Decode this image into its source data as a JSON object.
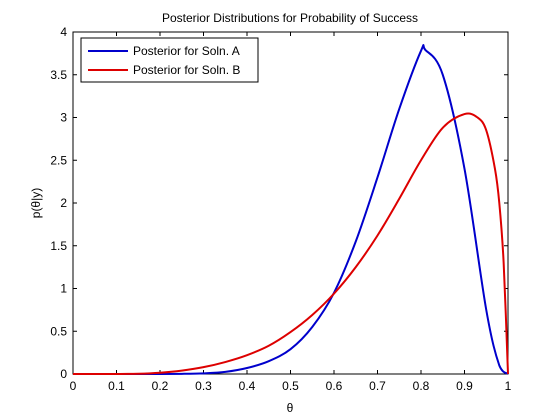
{
  "chart_data": {
    "type": "line",
    "title": "Posterior Distributions for Probability of Success",
    "xlabel": "θ",
    "ylabel": "p(θ|y)",
    "xlim": [
      0,
      1
    ],
    "ylim": [
      0,
      4
    ],
    "xticks": [
      0,
      0.1,
      0.2,
      0.3,
      0.4,
      0.5,
      0.6,
      0.7,
      0.8,
      0.9,
      1
    ],
    "yticks": [
      0,
      0.5,
      1,
      1.5,
      2,
      2.5,
      3,
      3.5,
      4
    ],
    "xtick_labels": [
      "0",
      "0.1",
      "0.2",
      "0.3",
      "0.4",
      "0.5",
      "0.6",
      "0.7",
      "0.8",
      "0.9",
      "1"
    ],
    "ytick_labels": [
      "0",
      "0.5",
      "1",
      "1.5",
      "2",
      "2.5",
      "3",
      "3.5",
      "4"
    ],
    "grid": false,
    "legend_position": "top-left",
    "series": [
      {
        "name": "Posterior for Soln. A",
        "color": "#0000cc",
        "x": [
          0,
          0.05,
          0.1,
          0.15,
          0.2,
          0.25,
          0.3,
          0.35,
          0.4,
          0.45,
          0.5,
          0.55,
          0.6,
          0.65,
          0.7,
          0.75,
          0.8,
          0.81,
          0.85,
          0.9,
          0.95,
          0.98,
          1
        ],
        "y": [
          0,
          0,
          0,
          0,
          0,
          0.002,
          0.008,
          0.025,
          0.07,
          0.15,
          0.29,
          0.55,
          0.95,
          1.55,
          2.3,
          3.1,
          3.78,
          3.79,
          3.5,
          2.4,
          0.75,
          0.1,
          0
        ]
      },
      {
        "name": "Posterior for Soln. B",
        "color": "#dd0000",
        "x": [
          0,
          0.05,
          0.1,
          0.15,
          0.2,
          0.25,
          0.3,
          0.35,
          0.4,
          0.45,
          0.5,
          0.55,
          0.6,
          0.65,
          0.7,
          0.75,
          0.8,
          0.85,
          0.9,
          0.93,
          0.95,
          0.97,
          0.98,
          0.99,
          1
        ],
        "y": [
          0,
          0,
          0,
          0.003,
          0.015,
          0.04,
          0.08,
          0.14,
          0.22,
          0.33,
          0.49,
          0.69,
          0.94,
          1.25,
          1.62,
          2.05,
          2.5,
          2.88,
          3.04,
          3.0,
          2.85,
          2.4,
          2.0,
          1.3,
          0
        ]
      }
    ]
  }
}
